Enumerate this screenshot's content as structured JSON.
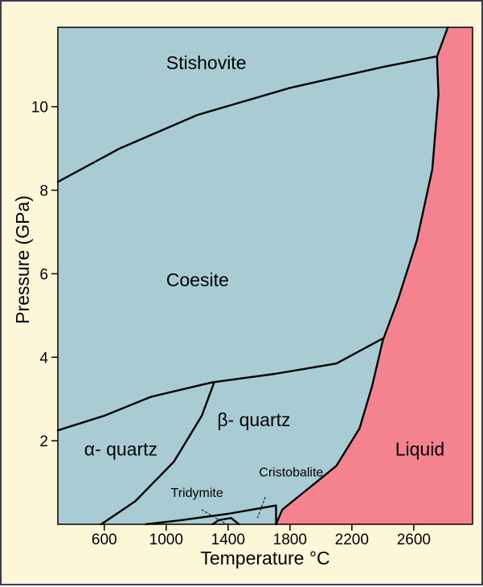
{
  "chart_data": {
    "type": "area",
    "xlabel": "Temperature °C",
    "ylabel": "Pressure (GPa)",
    "xlim": [
      300,
      2980
    ],
    "ylim": [
      0,
      11.9
    ],
    "x_ticks": [
      600,
      1000,
      1400,
      1800,
      2200,
      2600
    ],
    "y_ticks": [
      2,
      4,
      6,
      8,
      10
    ],
    "colors": {
      "solid": "#a9cbd4",
      "liquid": "#f4838f",
      "frame_bg": "#fdf6d8",
      "line": "#000000"
    },
    "phases": [
      {
        "label": "Stishovite",
        "x": 1000,
        "y": 10.9
      },
      {
        "label": "Coesite",
        "x": 1000,
        "y": 5.7
      },
      {
        "label": "β- quartz",
        "x": 1330,
        "y": 2.35
      },
      {
        "label": "α- quartz",
        "x": 470,
        "y": 1.65
      },
      {
        "label": "Liquid",
        "x": 2480,
        "y": 1.65
      },
      {
        "label": "Cristobalite",
        "x": 1600,
        "y": 1.15
      },
      {
        "label": "Tridymite",
        "x": 1030,
        "y": 0.65
      }
    ],
    "boundaries": {
      "coesite_stishovite": [
        [
          300,
          8.2
        ],
        [
          700,
          9.0
        ],
        [
          1200,
          9.8
        ],
        [
          1800,
          10.45
        ],
        [
          2400,
          10.95
        ],
        [
          2740,
          11.2
        ]
      ],
      "melting_curve": [
        [
          1710,
          0
        ],
        [
          1750,
          0.35
        ],
        [
          1900,
          0.8
        ],
        [
          2100,
          1.4
        ],
        [
          2250,
          2.3
        ],
        [
          2330,
          3.3
        ],
        [
          2400,
          4.4
        ],
        [
          2500,
          5.4
        ],
        [
          2620,
          6.8
        ],
        [
          2720,
          8.5
        ],
        [
          2760,
          10.3
        ],
        [
          2750,
          11.2
        ],
        [
          2820,
          11.9
        ]
      ],
      "alpha_beta_coesite": [
        [
          300,
          2.25
        ],
        [
          600,
          2.6
        ],
        [
          900,
          3.05
        ],
        [
          1300,
          3.4
        ],
        [
          1700,
          3.6
        ],
        [
          2100,
          3.85
        ],
        [
          2400,
          4.45
        ]
      ],
      "alpha_beta_quartz": [
        [
          580,
          0
        ],
        [
          800,
          0.55
        ],
        [
          1050,
          1.5
        ],
        [
          1230,
          2.6
        ],
        [
          1310,
          3.4
        ]
      ],
      "tridymite_cristobalite_top": [
        [
          870,
          0
        ],
        [
          1100,
          0.1
        ],
        [
          1400,
          0.25
        ],
        [
          1710,
          0.45
        ],
        [
          1710,
          0
        ]
      ],
      "tridymite_small": [
        [
          1300,
          0
        ],
        [
          1340,
          0.1
        ],
        [
          1420,
          0.15
        ],
        [
          1470,
          0
        ]
      ]
    },
    "leader_lines": [
      {
        "from": [
          1640,
          0.65
        ],
        "to": [
          1590,
          0.15
        ]
      },
      {
        "from": [
          1230,
          0.35
        ],
        "to": [
          1390,
          0.0
        ]
      }
    ]
  }
}
